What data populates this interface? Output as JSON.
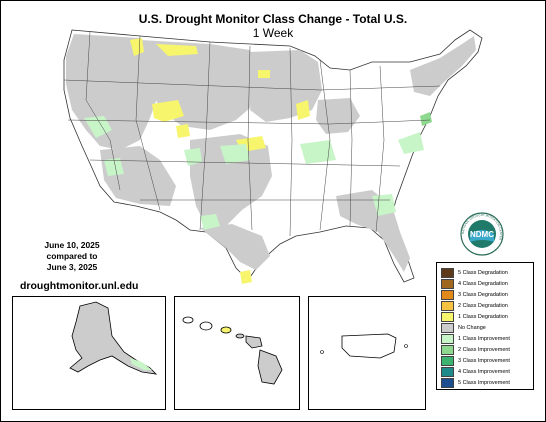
{
  "map": {
    "title": "U.S. Drought Monitor Class Change - Total U.S.",
    "subtitle": "1 Week",
    "date_current": "June 10, 2025",
    "compared_to": "compared to",
    "date_previous": "June 3, 2025",
    "url": "droughtmonitor.unl.edu",
    "logo_text": "NDMC",
    "logo_ring_text": "NATIONAL DROUGHT MITIGATION CENTER"
  },
  "legend": {
    "items": [
      {
        "label": "5 Class Degradation",
        "color": "#5c3a1a"
      },
      {
        "label": "4 Class Degradation",
        "color": "#a0681e"
      },
      {
        "label": "3 Class Degradation",
        "color": "#e08a1a"
      },
      {
        "label": "2 Class Degradation",
        "color": "#f5c242"
      },
      {
        "label": "1 Class Degradation",
        "color": "#f7f56b"
      },
      {
        "label": "No Change",
        "color": "#cccccc"
      },
      {
        "label": "1 Class Improvement",
        "color": "#c8f5c8"
      },
      {
        "label": "2 Class Improvement",
        "color": "#8fd88f"
      },
      {
        "label": "3 Class Improvement",
        "color": "#3cb371"
      },
      {
        "label": "4 Class Improvement",
        "color": "#1f8a8a"
      },
      {
        "label": "5 Class Improvement",
        "color": "#1c4f8f"
      }
    ]
  }
}
